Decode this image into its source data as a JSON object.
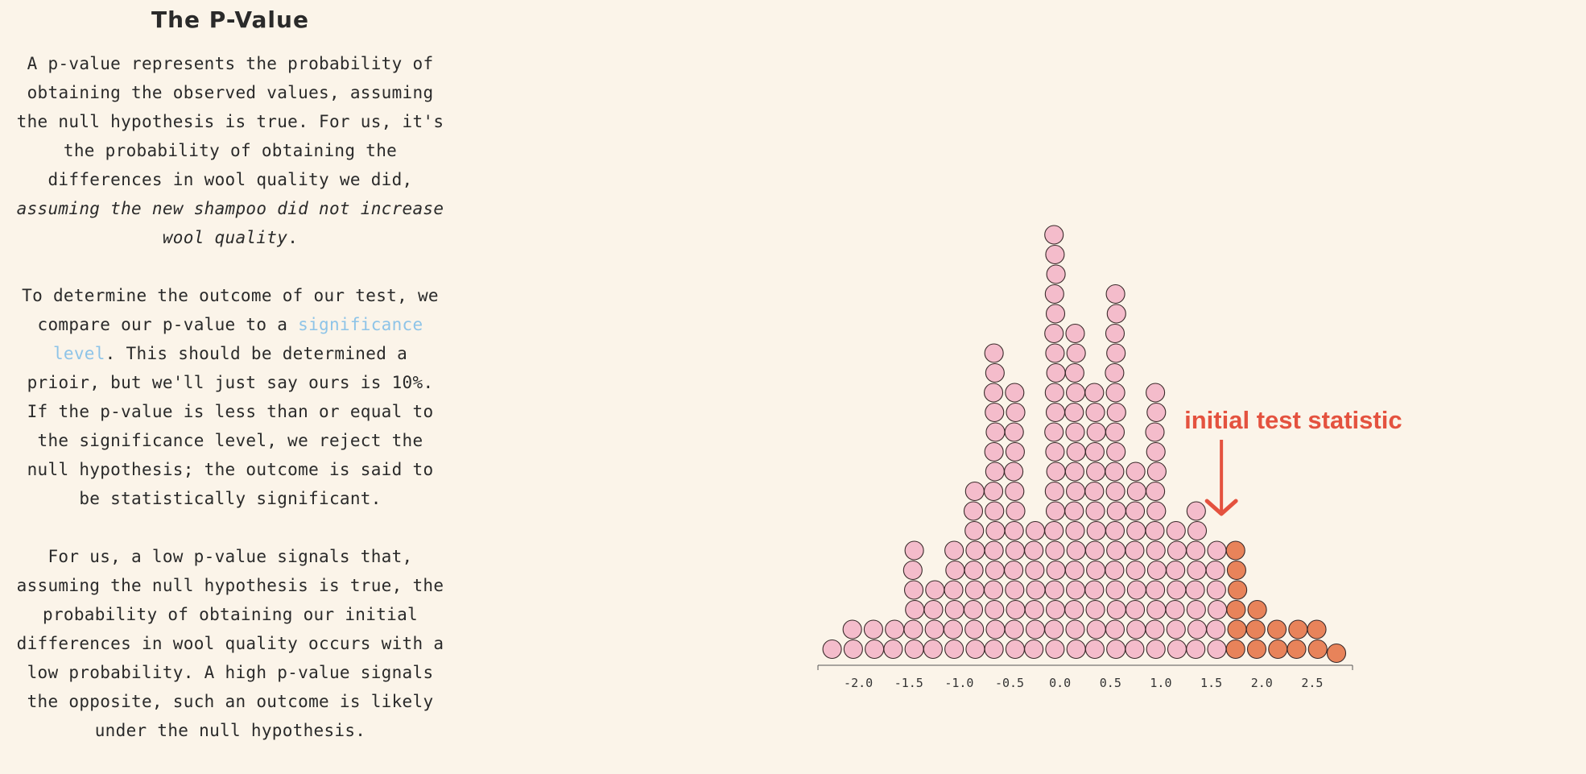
{
  "page": {
    "title": "The P-Value",
    "para1": {
      "text": "A p-value represents the probability of obtaining the observed values, assuming the null hypothesis is true. For us, it's the probability of obtaining the differences in wool quality we did, ",
      "italic": "assuming the new shampoo did not increase wool quality",
      "end": "."
    },
    "para2": {
      "before": "To determine the outcome of our test, we compare our p-value to a ",
      "link": "significance level",
      "after": ". This should be determined a prioir, but we'll just say ours is 10%. If the p-value is less than or equal to the significance level, we reject the null hypothesis; the outcome is said to be statistically significant."
    },
    "para3": {
      "text": "For us, a low p-value signals that, assuming the null hypothesis is true, the probability of obtaining our initial differences in wool quality occurs with a low probability. A high p-value signals the opposite, such an outcome is likely under the null hypothesis."
    }
  },
  "colors": {
    "background": "#fbf4e9",
    "dot_null": "#f4bccb",
    "dot_extreme": "#e8835a",
    "annotation": "#e4523f",
    "link": "#8ec4e8"
  },
  "chart_data": {
    "type": "scatter",
    "subtype": "dot-plot",
    "xlim": [
      -2.4,
      2.9
    ],
    "x_ticks": [
      "-2.0",
      "-1.5",
      "-1.0",
      "-0.5",
      "0.0",
      "0.5",
      "1.0",
      "1.5",
      "2.0",
      "2.5"
    ],
    "x_tick_values": [
      -2.0,
      -1.5,
      -1.0,
      -0.5,
      0.0,
      0.5,
      1.0,
      1.5,
      2.0,
      2.5
    ],
    "annotation": {
      "text": "initial test statistic",
      "x": 1.6
    },
    "bins": [
      {
        "x": -2.25,
        "count": 1,
        "extreme": 0
      },
      {
        "x": -2.05,
        "count": 2,
        "extreme": 0
      },
      {
        "x": -1.85,
        "count": 2,
        "extreme": 0
      },
      {
        "x": -1.65,
        "count": 2,
        "extreme": 0
      },
      {
        "x": -1.45,
        "count": 6,
        "extreme": 0
      },
      {
        "x": -1.25,
        "count": 4,
        "extreme": 0
      },
      {
        "x": -1.05,
        "count": 6,
        "extreme": 0
      },
      {
        "x": -0.85,
        "count": 9,
        "extreme": 0
      },
      {
        "x": -0.65,
        "count": 16,
        "extreme": 0
      },
      {
        "x": -0.45,
        "count": 14,
        "extreme": 0
      },
      {
        "x": -0.25,
        "count": 7,
        "extreme": 0
      },
      {
        "x": -0.05,
        "count": 22,
        "extreme": 0
      },
      {
        "x": 0.15,
        "count": 17,
        "extreme": 0
      },
      {
        "x": 0.35,
        "count": 14,
        "extreme": 0
      },
      {
        "x": 0.55,
        "count": 19,
        "extreme": 0
      },
      {
        "x": 0.75,
        "count": 10,
        "extreme": 0
      },
      {
        "x": 0.95,
        "count": 14,
        "extreme": 0
      },
      {
        "x": 1.15,
        "count": 7,
        "extreme": 0
      },
      {
        "x": 1.35,
        "count": 8,
        "extreme": 0
      },
      {
        "x": 1.55,
        "count": 6,
        "extreme": 0
      },
      {
        "x": 1.75,
        "count": 6,
        "extreme": 6
      },
      {
        "x": 1.95,
        "count": 3,
        "extreme": 3
      },
      {
        "x": 2.15,
        "count": 2,
        "extreme": 2
      },
      {
        "x": 2.35,
        "count": 2,
        "extreme": 2
      },
      {
        "x": 2.55,
        "count": 2,
        "extreme": 2
      },
      {
        "x": 2.75,
        "count": 1,
        "extreme": 1
      }
    ]
  }
}
